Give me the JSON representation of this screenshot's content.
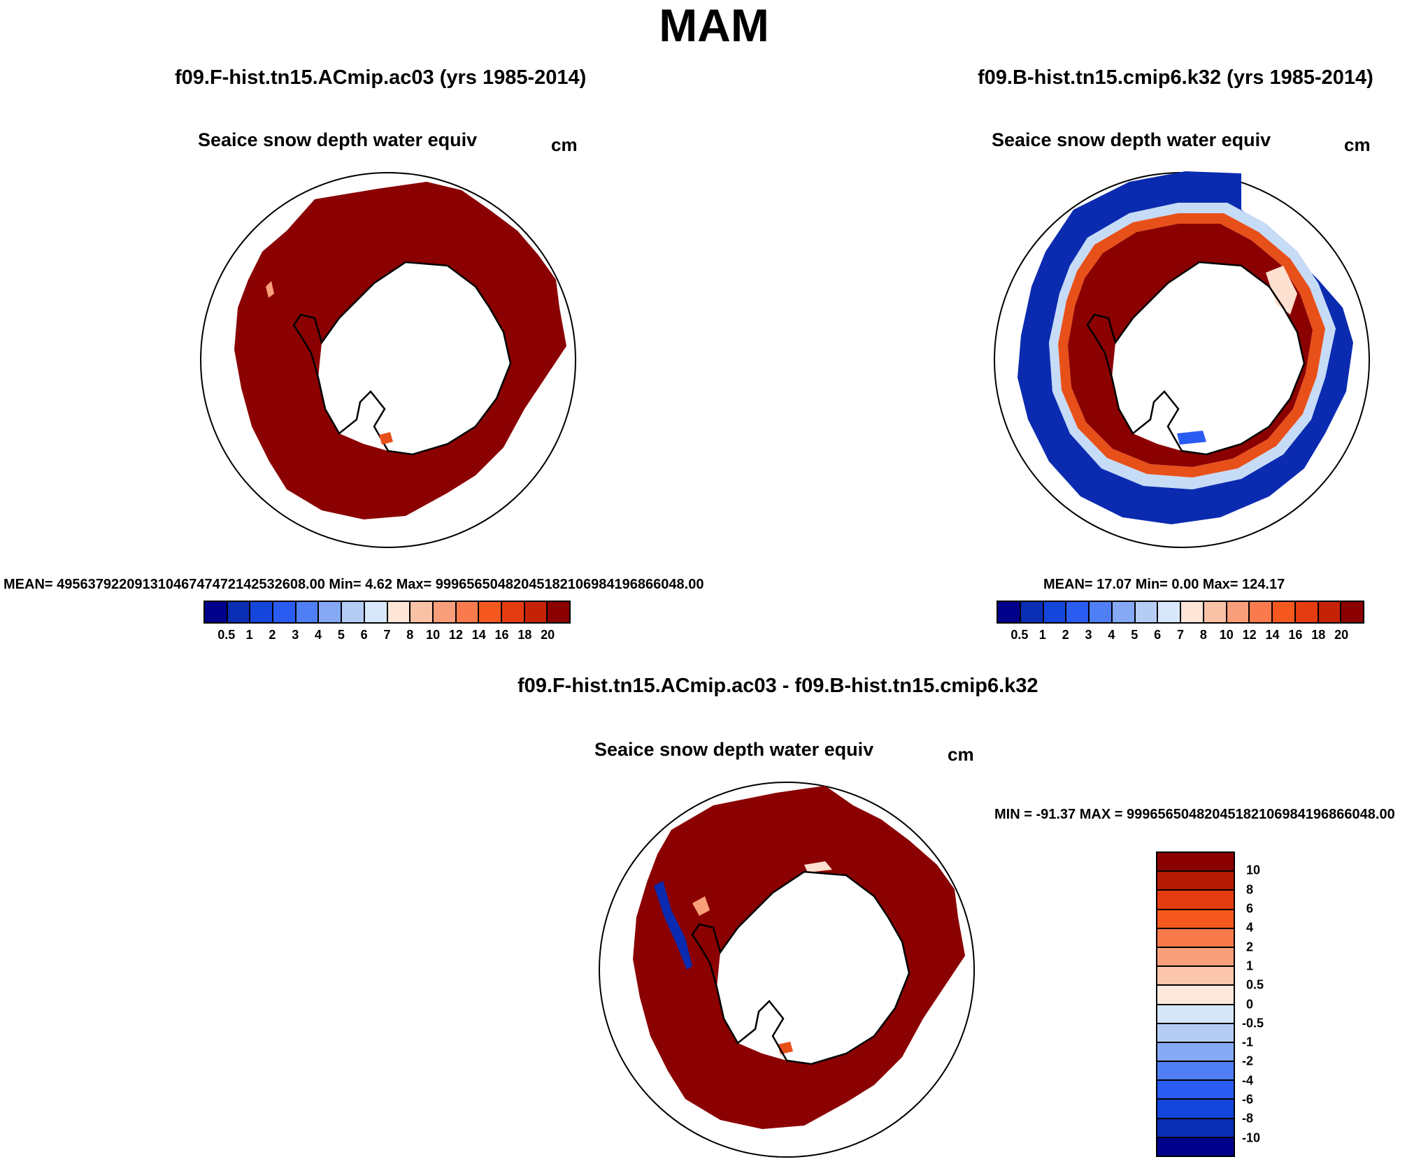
{
  "season": "MAM",
  "panels": {
    "left": {
      "title": "f09.F-hist.tn15.ACmip.ac03 (yrs 1985-2014)",
      "var_title": "Seaice snow depth water equiv",
      "units": "cm",
      "stats": "MEAN= 495637922091310467474721425326​08.00  Min=    4.62  Max= 999656504820451821069841968660​48.00"
    },
    "right": {
      "title": "f09.B-hist.tn15.cmip6.k32 (yrs 1985-2014)",
      "var_title": "Seaice snow depth water equiv",
      "units": "cm",
      "stats": "MEAN= 17.07  Min=   0.00  Max= 124.17"
    },
    "diff": {
      "title": "f09.F-hist.tn15.ACmip.ac03 - f09.B-hist.tn15.cmip6.k32",
      "var_title": "Seaice snow depth water equiv",
      "units": "cm",
      "stats": "MIN = -91.37 MAX = 99965650482045182106984196866048.00"
    }
  },
  "colorbar_main": {
    "labels": [
      "0.5",
      "1",
      "2",
      "3",
      "4",
      "5",
      "6",
      "7",
      "8",
      "10",
      "12",
      "14",
      "16",
      "18",
      "20"
    ],
    "colors": [
      "#00008b",
      "#0a2fb5",
      "#1446dc",
      "#2a5cf2",
      "#4f7ef5",
      "#85a9f5",
      "#b5ccf5",
      "#d8e8fa",
      "#fde6d8",
      "#f9c1a6",
      "#f99e7b",
      "#f97a4c",
      "#f4581f",
      "#e53b10",
      "#c42308",
      "#8b0000"
    ]
  },
  "colorbar_diff": {
    "labels": [
      "10",
      "8",
      "6",
      "4",
      "2",
      "1",
      "0.5",
      "0",
      "-0.5",
      "-1",
      "-2",
      "-4",
      "-6",
      "-8",
      "-10"
    ],
    "colors": [
      "#8b0000",
      "#b51a04",
      "#e53b10",
      "#f4581f",
      "#f9794a",
      "#f99e7b",
      "#fcc6ad",
      "#fde9dc",
      "#d7e7fa",
      "#b5ccf5",
      "#85a9f5",
      "#4f7ef5",
      "#2a5cf2",
      "#1446dc",
      "#0a2fb5",
      "#00008b"
    ]
  },
  "map_colors": {
    "high": "#8b0000",
    "orange": "#e8501a",
    "light_orange": "#f9a07a",
    "pale": "#fde0cf",
    "pale_blue": "#c6dbf6",
    "blue": "#2a5cf2",
    "dark_blue": "#0a2bb0",
    "land_outline": "#000000"
  }
}
